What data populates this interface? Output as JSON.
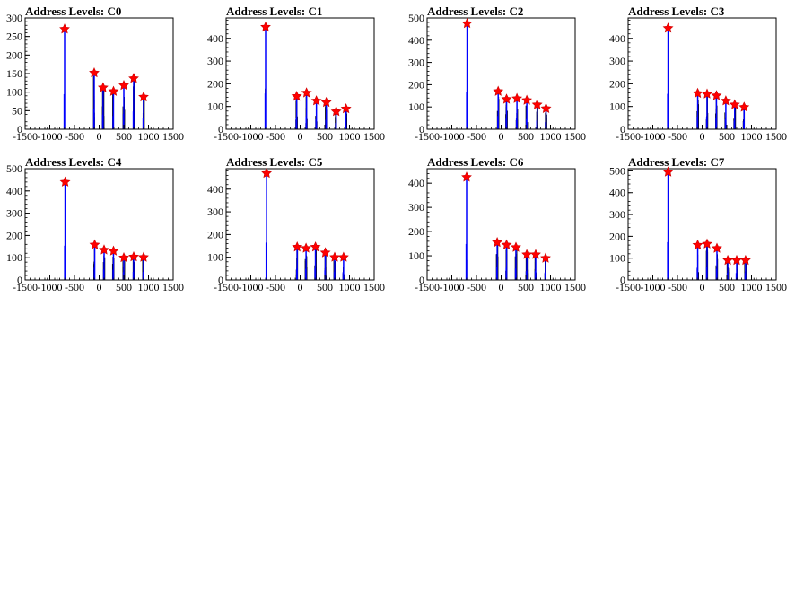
{
  "figure": {
    "background": "#ffffff",
    "frame_color": "#000000",
    "hist_color": "#0000ff",
    "noise_color": "#000000",
    "marker_color": "#ff0000"
  },
  "chart_data": [
    {
      "type": "histogram",
      "title": "Address Levels: C0",
      "xlim": [
        -1500,
        1500
      ],
      "ylim": [
        0,
        300
      ],
      "xticks": [
        "-1500",
        "-1000",
        "-500",
        "0",
        "500",
        "1000",
        "1500"
      ],
      "yticks": [
        "0",
        "50",
        "100",
        "150",
        "200",
        "250",
        "300"
      ],
      "peaks": [
        {
          "x": -700,
          "y": 270
        },
        {
          "x": -100,
          "y": 152
        },
        {
          "x": 80,
          "y": 112
        },
        {
          "x": 290,
          "y": 102
        },
        {
          "x": 500,
          "y": 118
        },
        {
          "x": 700,
          "y": 137
        },
        {
          "x": 900,
          "y": 87
        }
      ]
    },
    {
      "type": "histogram",
      "title": "Address Levels: C1",
      "xlim": [
        -1500,
        1500
      ],
      "ylim": [
        0,
        490
      ],
      "xticks": [
        "-1500",
        "-1000",
        "-500",
        "0",
        "500",
        "1000",
        "1500"
      ],
      "yticks": [
        "0",
        "100",
        "200",
        "300",
        "400"
      ],
      "peaks": [
        {
          "x": -700,
          "y": 450
        },
        {
          "x": -70,
          "y": 145
        },
        {
          "x": 130,
          "y": 160
        },
        {
          "x": 330,
          "y": 125
        },
        {
          "x": 530,
          "y": 118
        },
        {
          "x": 730,
          "y": 78
        },
        {
          "x": 930,
          "y": 90
        }
      ]
    },
    {
      "type": "histogram",
      "title": "Address Levels: C2",
      "xlim": [
        -1500,
        1500
      ],
      "ylim": [
        0,
        500
      ],
      "xticks": [
        "-1500",
        "-1000",
        "-500",
        "0",
        "500",
        "1000",
        "1500"
      ],
      "yticks": [
        "0",
        "100",
        "200",
        "300",
        "400",
        "500"
      ],
      "peaks": [
        {
          "x": -690,
          "y": 475
        },
        {
          "x": -60,
          "y": 170
        },
        {
          "x": 110,
          "y": 135
        },
        {
          "x": 320,
          "y": 138
        },
        {
          "x": 520,
          "y": 130
        },
        {
          "x": 730,
          "y": 110
        },
        {
          "x": 910,
          "y": 93
        }
      ]
    },
    {
      "type": "histogram",
      "title": "Address Levels: C3",
      "xlim": [
        -1500,
        1500
      ],
      "ylim": [
        0,
        490
      ],
      "xticks": [
        "-1500",
        "-1000",
        "-500",
        "0",
        "500",
        "1000",
        "1500"
      ],
      "yticks": [
        "0",
        "100",
        "200",
        "300",
        "400"
      ],
      "peaks": [
        {
          "x": -690,
          "y": 445
        },
        {
          "x": -90,
          "y": 158
        },
        {
          "x": 100,
          "y": 155
        },
        {
          "x": 290,
          "y": 148
        },
        {
          "x": 480,
          "y": 125
        },
        {
          "x": 660,
          "y": 108
        },
        {
          "x": 850,
          "y": 97
        }
      ]
    },
    {
      "type": "histogram",
      "title": "Address Levels: C4",
      "xlim": [
        -1500,
        1500
      ],
      "ylim": [
        0,
        500
      ],
      "xticks": [
        "-1500",
        "-1000",
        "-500",
        "0",
        "500",
        "1000",
        "1500"
      ],
      "yticks": [
        "0",
        "100",
        "200",
        "300",
        "400",
        "500"
      ],
      "peaks": [
        {
          "x": -690,
          "y": 440
        },
        {
          "x": -90,
          "y": 158
        },
        {
          "x": 100,
          "y": 135
        },
        {
          "x": 290,
          "y": 130
        },
        {
          "x": 500,
          "y": 100
        },
        {
          "x": 700,
          "y": 104
        },
        {
          "x": 900,
          "y": 102
        }
      ]
    },
    {
      "type": "histogram",
      "title": "Address Levels: C5",
      "xlim": [
        -1500,
        1500
      ],
      "ylim": [
        0,
        490
      ],
      "xticks": [
        "-1500",
        "-1000",
        "-500",
        "0",
        "500",
        "1000",
        "1500"
      ],
      "yticks": [
        "0",
        "100",
        "200",
        "300",
        "400"
      ],
      "peaks": [
        {
          "x": -680,
          "y": 470
        },
        {
          "x": -60,
          "y": 145
        },
        {
          "x": 120,
          "y": 140
        },
        {
          "x": 310,
          "y": 145
        },
        {
          "x": 510,
          "y": 120
        },
        {
          "x": 700,
          "y": 100
        },
        {
          "x": 880,
          "y": 100
        }
      ]
    },
    {
      "type": "histogram",
      "title": "Address Levels: C6",
      "xlim": [
        -1500,
        1500
      ],
      "ylim": [
        0,
        460
      ],
      "xticks": [
        "-1500",
        "-1000",
        "-500",
        "0",
        "500",
        "1000",
        "1500"
      ],
      "yticks": [
        "0",
        "100",
        "200",
        "300",
        "400"
      ],
      "peaks": [
        {
          "x": -700,
          "y": 425
        },
        {
          "x": -80,
          "y": 155
        },
        {
          "x": 110,
          "y": 145
        },
        {
          "x": 300,
          "y": 135
        },
        {
          "x": 520,
          "y": 105
        },
        {
          "x": 700,
          "y": 105
        },
        {
          "x": 900,
          "y": 90
        }
      ]
    },
    {
      "type": "histogram",
      "title": "Address Levels: C7",
      "xlim": [
        -1500,
        1500
      ],
      "ylim": [
        0,
        510
      ],
      "xticks": [
        "-1500",
        "-1000",
        "-500",
        "0",
        "500",
        "1000",
        "1500"
      ],
      "yticks": [
        "0",
        "100",
        "200",
        "300",
        "400",
        "500"
      ],
      "peaks": [
        {
          "x": -690,
          "y": 495
        },
        {
          "x": -90,
          "y": 160
        },
        {
          "x": 100,
          "y": 165
        },
        {
          "x": 300,
          "y": 145
        },
        {
          "x": 520,
          "y": 90
        },
        {
          "x": 700,
          "y": 90
        },
        {
          "x": 880,
          "y": 90
        }
      ]
    }
  ]
}
